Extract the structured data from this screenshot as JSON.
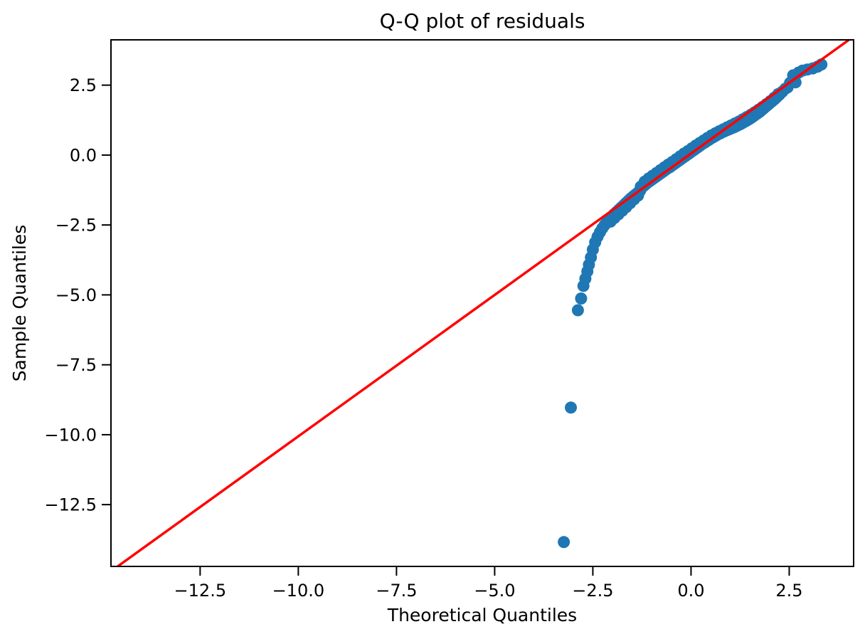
{
  "figure": {
    "background": "#ffffff"
  },
  "chart_data": {
    "type": "scatter",
    "title": "Q-Q plot of residuals",
    "xlabel": "Theoretical Quantiles",
    "ylabel": "Sample Quantiles",
    "xlim": [
      -14.77,
      4.14
    ],
    "ylim": [
      -14.71,
      4.12
    ],
    "x_ticks": [
      -12.5,
      -10.0,
      -7.5,
      -5.0,
      -2.5,
      0.0,
      2.5
    ],
    "y_ticks": [
      2.5,
      0.0,
      -2.5,
      -5.0,
      -7.5,
      -10.0,
      -12.5
    ],
    "grid": false,
    "legend": "none",
    "point_color": "#1f77b4",
    "point_radius_px": 8.5,
    "line_color": "#ff0000",
    "axis_color": "#000000",
    "reference_line": {
      "name": "45-degree line",
      "points": [
        [
          -14.6,
          -14.71
        ],
        [
          4.02,
          4.12
        ]
      ]
    },
    "series": [
      {
        "name": "sample-vs-theoretical-quantiles",
        "points": [
          [
            -3.24,
            -13.84
          ],
          [
            -3.06,
            -9.03
          ],
          [
            -2.88,
            -5.55
          ],
          [
            -2.8,
            -5.13
          ],
          [
            -2.74,
            -4.68
          ],
          [
            -2.69,
            -4.42
          ],
          [
            -2.64,
            -4.16
          ],
          [
            -2.6,
            -3.92
          ],
          [
            -2.55,
            -3.66
          ],
          [
            -2.5,
            -3.38
          ],
          [
            -2.44,
            -3.12
          ],
          [
            -2.38,
            -2.92
          ],
          [
            -2.32,
            -2.76
          ],
          [
            -2.26,
            -2.62
          ],
          [
            -2.2,
            -2.5
          ],
          [
            -2.14,
            -2.4
          ],
          [
            -2.08,
            -2.3
          ],
          [
            -2.02,
            -2.21
          ],
          [
            -1.96,
            -2.12
          ],
          [
            -1.9,
            -2.04
          ],
          [
            -1.84,
            -1.96
          ],
          [
            -1.78,
            -1.88
          ],
          [
            -1.72,
            -1.8
          ],
          [
            -1.66,
            -1.72
          ],
          [
            -1.6,
            -1.64
          ],
          [
            -1.54,
            -1.56
          ],
          [
            -1.48,
            -1.49
          ],
          [
            -1.42,
            -1.42
          ],
          [
            -1.36,
            -1.35
          ],
          [
            -1.3,
            -1.28
          ],
          [
            -1.25,
            -1.16
          ],
          [
            -1.2,
            -1.1
          ],
          [
            -1.15,
            -1.04
          ],
          [
            -1.1,
            -0.98
          ],
          [
            -1.05,
            -0.93
          ],
          [
            -1.0,
            -0.88
          ],
          [
            -0.95,
            -0.83
          ],
          [
            -0.9,
            -0.78
          ],
          [
            -0.85,
            -0.73
          ],
          [
            -0.8,
            -0.68
          ],
          [
            -0.75,
            -0.63
          ],
          [
            -0.7,
            -0.58
          ],
          [
            -0.65,
            -0.53
          ],
          [
            -0.6,
            -0.48
          ],
          [
            -0.55,
            -0.44
          ],
          [
            -0.5,
            -0.39
          ],
          [
            -0.45,
            -0.34
          ],
          [
            -0.4,
            -0.29
          ],
          [
            -0.35,
            -0.24
          ],
          [
            -0.3,
            -0.19
          ],
          [
            -0.25,
            -0.14
          ],
          [
            -0.2,
            -0.09
          ],
          [
            -0.15,
            -0.04
          ],
          [
            -0.1,
            0.01
          ],
          [
            -0.05,
            0.06
          ],
          [
            0.0,
            0.11
          ],
          [
            0.05,
            0.16
          ],
          [
            0.1,
            0.21
          ],
          [
            0.15,
            0.26
          ],
          [
            0.2,
            0.31
          ],
          [
            0.25,
            0.36
          ],
          [
            0.3,
            0.41
          ],
          [
            0.35,
            0.45
          ],
          [
            0.4,
            0.5
          ],
          [
            0.45,
            0.54
          ],
          [
            0.5,
            0.59
          ],
          [
            0.55,
            0.63
          ],
          [
            0.6,
            0.67
          ],
          [
            0.65,
            0.71
          ],
          [
            0.7,
            0.75
          ],
          [
            0.75,
            0.78
          ],
          [
            0.8,
            0.82
          ],
          [
            0.85,
            0.85
          ],
          [
            0.9,
            0.88
          ],
          [
            0.95,
            0.91
          ],
          [
            1.0,
            0.94
          ],
          [
            1.05,
            0.97
          ],
          [
            1.1,
            1.0
          ],
          [
            1.15,
            1.03
          ],
          [
            1.2,
            1.07
          ],
          [
            1.25,
            1.1
          ],
          [
            1.3,
            1.14
          ],
          [
            1.35,
            1.18
          ],
          [
            1.4,
            1.22
          ],
          [
            1.45,
            1.26
          ],
          [
            1.5,
            1.3
          ],
          [
            1.55,
            1.35
          ],
          [
            1.6,
            1.4
          ],
          [
            1.65,
            1.45
          ],
          [
            1.7,
            1.5
          ],
          [
            1.75,
            1.55
          ],
          [
            1.8,
            1.61
          ],
          [
            1.85,
            1.67
          ],
          [
            1.9,
            1.73
          ],
          [
            1.95,
            1.79
          ],
          [
            2.0,
            1.85
          ],
          [
            2.06,
            1.92
          ],
          [
            2.12,
            1.99
          ],
          [
            2.18,
            2.07
          ],
          [
            2.25,
            2.16
          ],
          [
            2.32,
            2.26
          ],
          [
            2.4,
            2.37
          ],
          [
            2.46,
            2.42
          ],
          [
            2.52,
            2.58
          ],
          [
            2.6,
            2.85
          ],
          [
            2.66,
            2.6
          ],
          [
            2.74,
            2.95
          ],
          [
            2.84,
            3.02
          ],
          [
            2.96,
            3.06
          ],
          [
            3.1,
            3.1
          ],
          [
            3.22,
            3.16
          ],
          [
            3.32,
            3.24
          ],
          [
            -2.05,
            -2.38
          ],
          [
            -1.95,
            -2.25
          ],
          [
            -1.85,
            -2.12
          ],
          [
            -1.75,
            -1.99
          ],
          [
            -1.65,
            -1.86
          ],
          [
            -1.55,
            -1.72
          ],
          [
            -1.45,
            -1.58
          ],
          [
            -1.35,
            -1.45
          ],
          [
            -1.28,
            -1.13
          ],
          [
            -1.18,
            -0.95
          ],
          [
            -1.08,
            -0.84
          ],
          [
            -0.98,
            -0.74
          ],
          [
            -0.88,
            -0.64
          ],
          [
            -0.78,
            -0.54
          ],
          [
            -0.68,
            -0.44
          ],
          [
            -0.58,
            -0.34
          ],
          [
            -0.48,
            -0.25
          ],
          [
            -0.38,
            -0.15
          ],
          [
            -0.28,
            -0.05
          ],
          [
            -0.18,
            0.05
          ],
          [
            -0.08,
            0.14
          ],
          [
            0.02,
            0.24
          ],
          [
            0.12,
            0.34
          ],
          [
            0.22,
            0.43
          ],
          [
            0.32,
            0.52
          ],
          [
            0.42,
            0.61
          ],
          [
            0.52,
            0.7
          ],
          [
            0.62,
            0.78
          ],
          [
            0.72,
            0.85
          ],
          [
            0.82,
            0.92
          ],
          [
            0.92,
            0.99
          ],
          [
            1.02,
            1.06
          ],
          [
            1.12,
            1.13
          ],
          [
            1.22,
            1.2
          ],
          [
            1.32,
            1.28
          ],
          [
            1.42,
            1.36
          ],
          [
            1.52,
            1.44
          ],
          [
            1.62,
            1.53
          ],
          [
            1.72,
            1.62
          ],
          [
            1.82,
            1.72
          ],
          [
            1.92,
            1.82
          ],
          [
            2.02,
            1.93
          ],
          [
            2.12,
            2.05
          ],
          [
            2.22,
            2.18
          ]
        ]
      }
    ]
  }
}
